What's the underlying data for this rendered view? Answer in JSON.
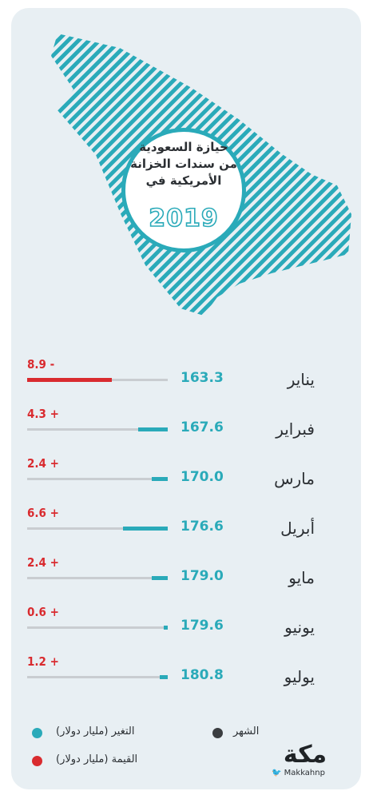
{
  "title": {
    "lines": [
      "حيازة السعودية",
      "من سندات الخزانة",
      "الأمريكية في"
    ],
    "year": "2019"
  },
  "chart_data": {
    "type": "bar",
    "categories": [
      "يناير",
      "فبراير",
      "مارس",
      "أبريل",
      "مايو",
      "يونيو",
      "يوليو"
    ],
    "series": [
      {
        "name": "القيمة (مليار دولار)",
        "values": [
          163.3,
          167.6,
          170.0,
          176.6,
          179.0,
          179.6,
          180.8
        ]
      },
      {
        "name": "التغير (مليار دولار)",
        "values": [
          -8.9,
          4.3,
          2.4,
          6.6,
          2.4,
          0.6,
          1.2
        ]
      }
    ],
    "value_labels": [
      "163.3",
      "167.6",
      "170.0",
      "176.6",
      "179.0",
      "179.6",
      "180.8"
    ],
    "change_labels": [
      "8.9 -",
      "4.3 +",
      "2.4 +",
      "6.6 +",
      "2.4 +",
      "0.6 +",
      "1.2 +"
    ]
  },
  "legend": {
    "month": "الشهر",
    "change": "التغير (مليار دولار)",
    "value": "القيمة (مليار دولار)"
  },
  "brand": {
    "logo": "مكة",
    "handle": "Makkahnp"
  },
  "colors": {
    "teal": "#2aaab9",
    "red": "#d92b2f",
    "gray": "#c9cdd1",
    "dark": "#2b2f33",
    "background": "#e8eff3"
  }
}
